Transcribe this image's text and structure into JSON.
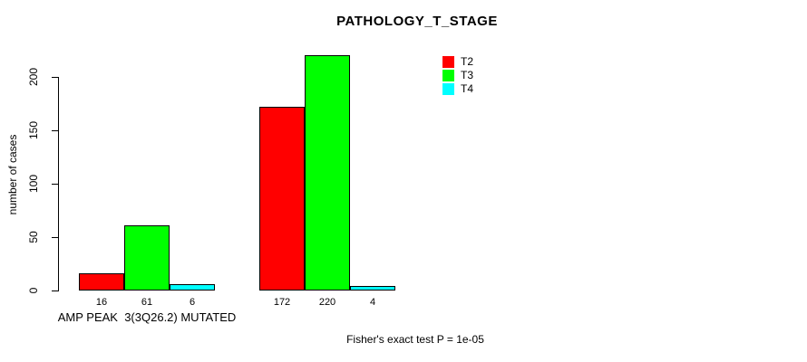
{
  "title": "PATHOLOGY_T_STAGE",
  "footnote": "Fisher's exact test P = 1e-05",
  "y_axis": {
    "label": "number of cases",
    "ticks": [
      0,
      50,
      100,
      150,
      200
    ]
  },
  "x_axis": {
    "group_labels": [
      "AMP PEAK  3(3Q26.2) MUTATED",
      ""
    ]
  },
  "legend": [
    {
      "label": "T2",
      "color": "#ff0000"
    },
    {
      "label": "T3",
      "color": "#00ff00"
    },
    {
      "label": "T4",
      "color": "#00ffff"
    }
  ],
  "chart_data": {
    "type": "bar",
    "grouped": true,
    "title": "PATHOLOGY_T_STAGE",
    "ylabel": "number of cases",
    "xlabel": "",
    "ylim": [
      0,
      220
    ],
    "yticks": [
      0,
      50,
      100,
      150,
      200
    ],
    "grid": false,
    "legend_position": "top-right",
    "bar_value_labels_shown": true,
    "categories": [
      "AMP PEAK  3(3Q26.2) MUTATED",
      ""
    ],
    "series": [
      {
        "name": "T2",
        "color": "#ff0000",
        "values": [
          16,
          172
        ]
      },
      {
        "name": "T3",
        "color": "#00ff00",
        "values": [
          61,
          220
        ]
      },
      {
        "name": "T4",
        "color": "#00ffff",
        "values": [
          6,
          4
        ]
      }
    ],
    "annotation": "Fisher's exact test P = 1e-05"
  }
}
